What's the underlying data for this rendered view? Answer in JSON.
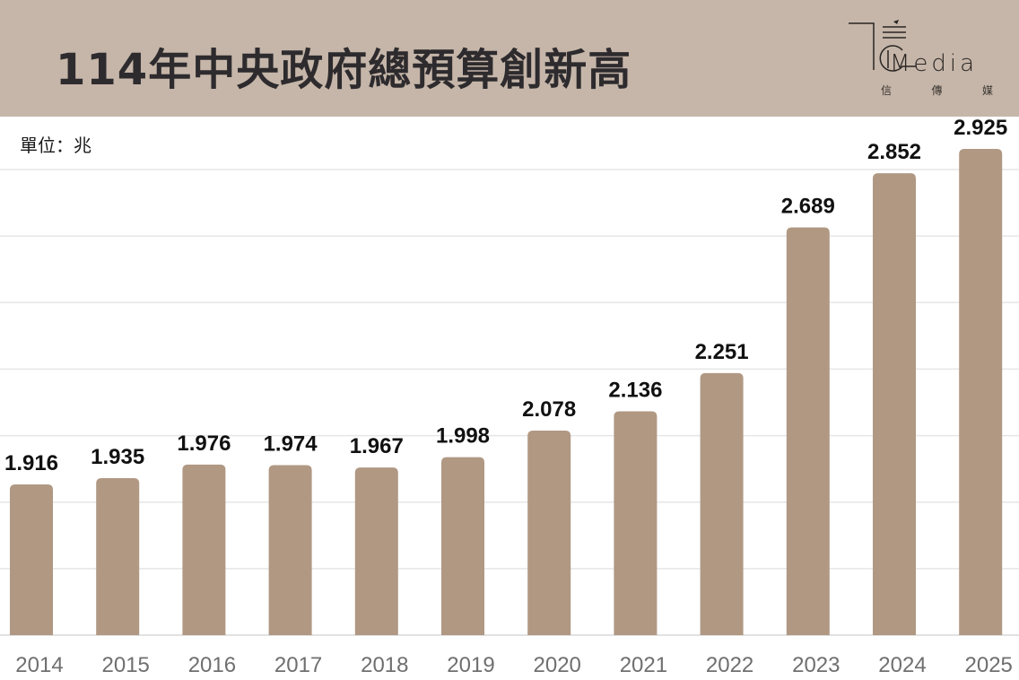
{
  "header": {
    "title": "114年中央政府總預算創新高"
  },
  "logo": {
    "word": "Media",
    "chinese": [
      "信",
      "傳",
      "媒"
    ]
  },
  "colors": {
    "header_bg": "#c5b6a9",
    "bar": "#b09883",
    "grid": "#e6e6e6",
    "tick": "#6f6f6f"
  },
  "chart_data": {
    "type": "bar",
    "title": "114年中央政府總預算創新高",
    "unit_label": "單位：兆",
    "xlabel": "",
    "ylabel": "",
    "categories": [
      "2014",
      "2015",
      "2016",
      "2017",
      "2018",
      "2019",
      "2020",
      "2021",
      "2022",
      "2023",
      "2024",
      "2025"
    ],
    "values": [
      1.916,
      1.935,
      1.976,
      1.974,
      1.967,
      1.998,
      2.078,
      2.136,
      2.251,
      2.689,
      2.852,
      2.925
    ],
    "data_labels": [
      "1.916",
      "1.935",
      "1.976",
      "1.974",
      "1.967",
      "1.998",
      "2.078",
      "2.136",
      "2.251",
      "2.689",
      "2.852",
      "2.925"
    ],
    "ylim": [
      1.463,
      2.925
    ],
    "grid": true,
    "grid_step": 0.2,
    "legend": "none"
  }
}
